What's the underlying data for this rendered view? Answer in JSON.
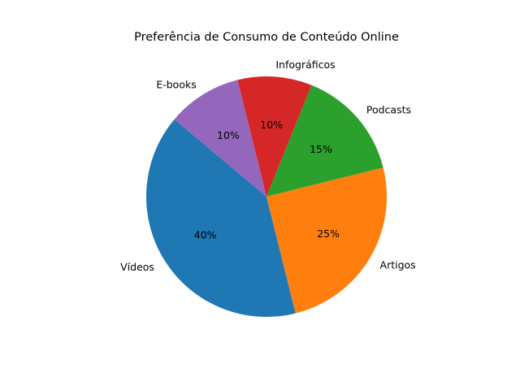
{
  "chart_data": {
    "type": "pie",
    "title": "Preferência de Consumo de Conteúdo Online",
    "start_angle_deg": 140,
    "direction": "counterclockwise",
    "slices": [
      {
        "label": "Vídeos",
        "value": 40,
        "pct_label": "40%",
        "color": "#1f77b4"
      },
      {
        "label": "Artigos",
        "value": 25,
        "pct_label": "25%",
        "color": "#ff7f0e"
      },
      {
        "label": "Podcasts",
        "value": 15,
        "pct_label": "15%",
        "color": "#2ca02c"
      },
      {
        "label": "Infográficos",
        "value": 10,
        "pct_label": "10%",
        "color": "#d62728"
      },
      {
        "label": "E-books",
        "value": 10,
        "pct_label": "10%",
        "color": "#9467bd"
      }
    ]
  }
}
